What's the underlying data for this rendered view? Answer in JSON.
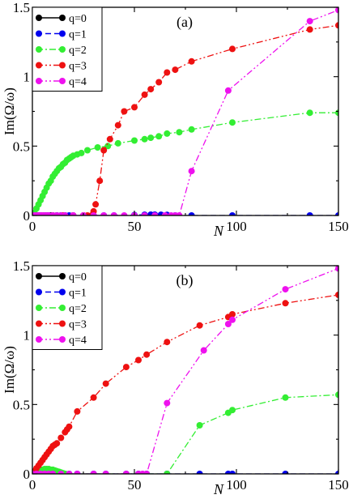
{
  "colors": {
    "q0": "#000000",
    "q1": "#0000ee",
    "q2": "#33ee33",
    "q3": "#ee1111",
    "q4": "#ee11ee"
  },
  "chart_data": [
    {
      "type": "line",
      "panel_label": "(a)",
      "xlabel": "N",
      "ylabel": "Im(Ω/ω)",
      "xlim": [
        0,
        150
      ],
      "ylim": [
        0,
        1.5
      ],
      "xticks": [
        0,
        50,
        100,
        150
      ],
      "yticks": [
        0,
        0.5,
        1,
        1.5
      ],
      "ytick_labels": [
        "0",
        "0.5",
        "1",
        "1.5"
      ],
      "legend": "top-left",
      "series": [
        {
          "name": "q=0",
          "style": "solid",
          "x": [
            0,
            1,
            2,
            3,
            4,
            5,
            6,
            7,
            8,
            9,
            10,
            12,
            14,
            16
          ],
          "y": [
            0,
            0,
            0,
            0,
            0,
            0,
            0,
            0,
            0,
            0,
            0,
            0,
            0,
            0
          ]
        },
        {
          "name": "q=1",
          "style": "dash",
          "x": [
            0,
            2,
            4,
            6,
            8,
            10,
            12,
            14,
            16,
            18,
            20,
            25,
            30,
            35,
            40,
            50,
            55,
            58,
            60,
            63,
            66,
            70,
            78,
            98,
            136,
            150
          ],
          "y": [
            0,
            0,
            0,
            0,
            0,
            0,
            0,
            0,
            0,
            0,
            0,
            0,
            0,
            0,
            0,
            0.003,
            0.005,
            0.006,
            0.006,
            0.005,
            0.004,
            0,
            0,
            0,
            0,
            0
          ]
        },
        {
          "name": "q=2",
          "style": "dashdot",
          "x": [
            0,
            1,
            2,
            3,
            4,
            5,
            6,
            7,
            8,
            9,
            10,
            11,
            12,
            13,
            14,
            15,
            16,
            17,
            18,
            19,
            20,
            22,
            24,
            27,
            32,
            37,
            42,
            50,
            55,
            58,
            62,
            66,
            72,
            78,
            98,
            136,
            150
          ],
          "y": [
            0,
            0.02,
            0.05,
            0.08,
            0.11,
            0.14,
            0.17,
            0.2,
            0.23,
            0.25,
            0.28,
            0.3,
            0.32,
            0.34,
            0.35,
            0.37,
            0.38,
            0.4,
            0.41,
            0.42,
            0.43,
            0.44,
            0.45,
            0.47,
            0.49,
            0.5,
            0.52,
            0.54,
            0.55,
            0.56,
            0.57,
            0.59,
            0.6,
            0.62,
            0.67,
            0.74,
            0.74
          ]
        },
        {
          "name": "q=3",
          "style": "dashdotdot",
          "x": [
            0,
            5,
            10,
            15,
            20,
            25,
            27,
            29,
            30,
            31,
            33,
            35,
            38,
            42,
            45,
            50,
            55,
            58,
            62,
            66,
            70,
            78,
            98,
            136,
            150
          ],
          "y": [
            0,
            0,
            0,
            0,
            0,
            0,
            0,
            0,
            0.03,
            0.08,
            0.25,
            0.47,
            0.55,
            0.65,
            0.75,
            0.78,
            0.87,
            0.91,
            0.96,
            1.03,
            1.05,
            1.11,
            1.2,
            1.34,
            1.37
          ]
        },
        {
          "name": "q=4",
          "style": "dashdotdot",
          "x": [
            0,
            1,
            2,
            3,
            4,
            5,
            6,
            7,
            8,
            10,
            12,
            14,
            16,
            20,
            25,
            30,
            35,
            40,
            45,
            50,
            55,
            60,
            65,
            68,
            70,
            72,
            78,
            96,
            136,
            150
          ],
          "y": [
            0,
            0,
            0,
            0,
            0,
            0,
            0,
            0,
            0,
            0,
            0,
            0,
            0,
            0,
            0,
            0,
            0,
            0,
            0,
            0,
            0,
            0,
            0,
            0,
            0,
            0,
            0.32,
            0.9,
            1.4,
            1.48
          ]
        }
      ]
    },
    {
      "type": "line",
      "panel_label": "(b)",
      "xlabel": "N",
      "ylabel": "Im(Ω/ω)",
      "xlim": [
        0,
        150
      ],
      "ylim": [
        0,
        1.5
      ],
      "xticks": [
        0,
        50,
        100,
        150
      ],
      "yticks": [
        0,
        0.5,
        1,
        1.5
      ],
      "ytick_labels": [
        "0",
        "0.5",
        "1",
        "1.5"
      ],
      "legend": "top-left",
      "series": [
        {
          "name": "q=0",
          "style": "solid",
          "x": [
            0,
            1,
            2,
            3,
            4,
            5,
            6,
            7,
            8,
            9,
            10,
            12,
            14,
            16
          ],
          "y": [
            0,
            0,
            0,
            0,
            0,
            0,
            0,
            0,
            0,
            0,
            0,
            0,
            0,
            0
          ]
        },
        {
          "name": "q=1",
          "style": "dash",
          "x": [
            0,
            2,
            4,
            6,
            8,
            10,
            14,
            18,
            22,
            30,
            36,
            46,
            52,
            56,
            66,
            82,
            96,
            98,
            124,
            150
          ],
          "y": [
            0,
            0,
            0,
            0,
            0,
            0,
            0,
            0,
            0,
            0,
            0,
            0,
            0,
            0,
            0,
            0,
            0,
            0,
            0,
            0
          ]
        },
        {
          "name": "q=2",
          "style": "dashdot",
          "x": [
            0,
            1,
            2,
            3,
            4,
            5,
            6,
            7,
            8,
            9,
            10,
            11,
            12,
            13,
            14,
            15,
            16,
            66,
            82,
            96,
            98,
            124,
            150
          ],
          "y": [
            0,
            0.01,
            0.02,
            0.025,
            0.03,
            0.03,
            0.035,
            0.035,
            0.035,
            0.03,
            0.03,
            0.025,
            0.02,
            0.015,
            0.01,
            0.005,
            0,
            0,
            0.35,
            0.44,
            0.46,
            0.55,
            0.57
          ]
        },
        {
          "name": "q=3",
          "style": "dashdotdot",
          "x": [
            0,
            1,
            2,
            3,
            4,
            5,
            6,
            7,
            8,
            9,
            10,
            11,
            12,
            14,
            16,
            17,
            18,
            22,
            30,
            36,
            46,
            52,
            56,
            66,
            82,
            96,
            98,
            124,
            150
          ],
          "y": [
            0,
            0.02,
            0.04,
            0.06,
            0.08,
            0.1,
            0.12,
            0.14,
            0.16,
            0.18,
            0.2,
            0.21,
            0.22,
            0.26,
            0.3,
            0.32,
            0.34,
            0.45,
            0.55,
            0.65,
            0.77,
            0.82,
            0.86,
            0.95,
            1.07,
            1.13,
            1.15,
            1.23,
            1.29
          ]
        },
        {
          "name": "q=4",
          "style": "dashdotdot",
          "x": [
            0,
            2,
            4,
            6,
            8,
            10,
            14,
            18,
            22,
            30,
            36,
            46,
            52,
            54,
            56,
            66,
            84,
            96,
            98,
            124,
            150
          ],
          "y": [
            0,
            0,
            0,
            0,
            0,
            0,
            0,
            0,
            0,
            0,
            0,
            0,
            0,
            0,
            0,
            0.51,
            0.89,
            1.08,
            1.11,
            1.33,
            1.48
          ]
        }
      ]
    }
  ]
}
